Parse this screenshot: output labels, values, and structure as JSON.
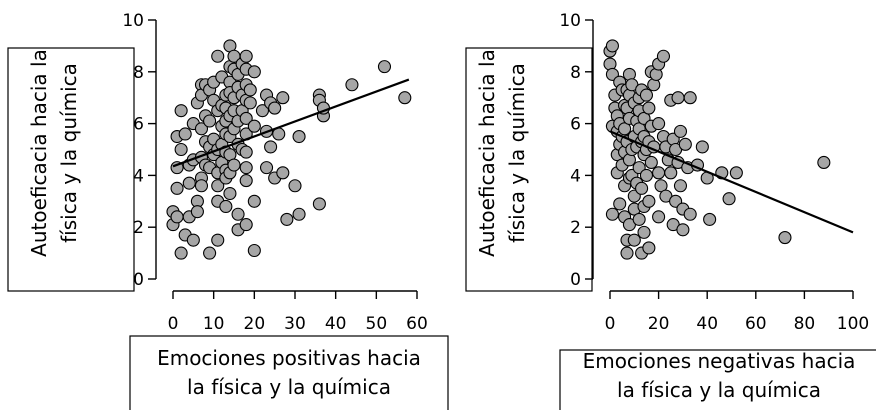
{
  "chart_data": [
    {
      "type": "scatter",
      "xlabel_lines": [
        "Emociones positivas hacia",
        "la física y la química"
      ],
      "ylabel_lines": [
        "Autoeficacia hacia la",
        "física y la química"
      ],
      "xlim": [
        0,
        60
      ],
      "ylim": [
        0,
        10
      ],
      "xticks": [
        "0",
        "10",
        "20",
        "30",
        "40",
        "50",
        "60"
      ],
      "yticks": [
        "0",
        "2",
        "4",
        "6",
        "8",
        "10"
      ],
      "fit_line": [
        [
          0,
          4.35
        ],
        [
          58,
          7.7
        ]
      ],
      "points": [
        [
          0,
          2.6
        ],
        [
          0,
          2.1
        ],
        [
          1,
          5.5
        ],
        [
          1,
          4.3
        ],
        [
          1,
          3.5
        ],
        [
          1,
          2.4
        ],
        [
          2,
          1.0
        ],
        [
          2,
          6.5
        ],
        [
          2,
          5.0
        ],
        [
          3,
          5.6
        ],
        [
          3,
          1.7
        ],
        [
          4,
          2.4
        ],
        [
          4,
          4.4
        ],
        [
          4,
          3.7
        ],
        [
          5,
          4.6
        ],
        [
          5,
          1.5
        ],
        [
          5,
          6.0
        ],
        [
          6,
          6.8
        ],
        [
          6,
          3.0
        ],
        [
          6,
          2.6
        ],
        [
          7,
          7.5
        ],
        [
          7,
          7.1
        ],
        [
          7,
          5.8
        ],
        [
          7,
          4.7
        ],
        [
          7,
          3.9
        ],
        [
          7,
          3.6
        ],
        [
          8,
          7.5
        ],
        [
          8,
          6.3
        ],
        [
          8,
          5.3
        ],
        [
          8,
          4.4
        ],
        [
          9,
          7.3
        ],
        [
          9,
          6.1
        ],
        [
          9,
          5.1
        ],
        [
          9,
          4.3
        ],
        [
          9,
          1.0
        ],
        [
          10,
          7.6
        ],
        [
          10,
          6.9
        ],
        [
          10,
          5.4
        ],
        [
          10,
          4.8
        ],
        [
          11,
          8.6
        ],
        [
          11,
          6.5
        ],
        [
          11,
          5.0
        ],
        [
          11,
          4.1
        ],
        [
          11,
          3.6
        ],
        [
          11,
          3.0
        ],
        [
          11,
          1.5
        ],
        [
          12,
          7.8
        ],
        [
          12,
          6.7
        ],
        [
          12,
          5.9
        ],
        [
          12,
          5.2
        ],
        [
          12,
          4.5
        ],
        [
          13,
          7.1
        ],
        [
          13,
          6.6
        ],
        [
          13,
          6.1
        ],
        [
          13,
          5.6
        ],
        [
          13,
          4.9
        ],
        [
          13,
          4.2
        ],
        [
          13,
          3.9
        ],
        [
          13,
          2.8
        ],
        [
          14,
          9.0
        ],
        [
          14,
          8.2
        ],
        [
          14,
          7.6
        ],
        [
          14,
          7.2
        ],
        [
          14,
          6.3
        ],
        [
          14,
          5.5
        ],
        [
          14,
          4.8
        ],
        [
          14,
          4.1
        ],
        [
          14,
          3.3
        ],
        [
          15,
          8.6
        ],
        [
          15,
          8.1
        ],
        [
          15,
          7.0
        ],
        [
          15,
          6.5
        ],
        [
          15,
          5.8
        ],
        [
          15,
          4.4
        ],
        [
          16,
          7.9
        ],
        [
          16,
          7.4
        ],
        [
          16,
          6.1
        ],
        [
          16,
          5.2
        ],
        [
          16,
          2.5
        ],
        [
          16,
          1.9
        ],
        [
          17,
          8.3
        ],
        [
          17,
          7.1
        ],
        [
          17,
          6.5
        ],
        [
          17,
          5.0
        ],
        [
          18,
          8.6
        ],
        [
          18,
          8.1
        ],
        [
          18,
          7.5
        ],
        [
          18,
          6.9
        ],
        [
          18,
          6.2
        ],
        [
          18,
          5.6
        ],
        [
          18,
          4.9
        ],
        [
          18,
          4.3
        ],
        [
          18,
          3.8
        ],
        [
          18,
          2.1
        ],
        [
          19,
          7.3
        ],
        [
          19,
          6.8
        ],
        [
          20,
          8.0
        ],
        [
          20,
          5.9
        ],
        [
          20,
          3.0
        ],
        [
          20,
          1.1
        ],
        [
          22,
          6.5
        ],
        [
          23,
          7.1
        ],
        [
          23,
          5.7
        ],
        [
          23,
          4.3
        ],
        [
          24,
          6.8
        ],
        [
          24,
          5.1
        ],
        [
          25,
          6.6
        ],
        [
          25,
          3.9
        ],
        [
          26,
          5.6
        ],
        [
          27,
          7.0
        ],
        [
          27,
          4.1
        ],
        [
          28,
          2.3
        ],
        [
          30,
          3.6
        ],
        [
          31,
          5.5
        ],
        [
          31,
          2.5
        ],
        [
          36,
          7.1
        ],
        [
          36,
          6.9
        ],
        [
          36,
          2.9
        ],
        [
          37,
          6.3
        ],
        [
          37,
          6.6
        ],
        [
          44,
          7.5
        ],
        [
          52,
          8.2
        ],
        [
          57,
          7.0
        ]
      ]
    },
    {
      "type": "scatter",
      "xlabel_lines": [
        "Emociones negativas hacia",
        "la física y la química"
      ],
      "ylabel_lines": [
        "Autoeficacia hacia la",
        "física y la química"
      ],
      "xlim": [
        0,
        100
      ],
      "ylim": [
        0,
        10
      ],
      "xticks": [
        "0",
        "20",
        "40",
        "60",
        "80",
        "100"
      ],
      "yticks": [
        "0",
        "2",
        "4",
        "6",
        "8",
        "10"
      ],
      "fit_line": [
        [
          0,
          5.7
        ],
        [
          100,
          1.8
        ]
      ],
      "points": [
        [
          0,
          8.8
        ],
        [
          0,
          8.3
        ],
        [
          1,
          9.0
        ],
        [
          1,
          7.9
        ],
        [
          1,
          5.9
        ],
        [
          1,
          2.5
        ],
        [
          2,
          7.1
        ],
        [
          2,
          6.6
        ],
        [
          3,
          6.3
        ],
        [
          3,
          5.7
        ],
        [
          3,
          4.8
        ],
        [
          3,
          4.1
        ],
        [
          4,
          7.6
        ],
        [
          4,
          6.0
        ],
        [
          4,
          5.2
        ],
        [
          4,
          2.9
        ],
        [
          5,
          7.3
        ],
        [
          5,
          5.5
        ],
        [
          5,
          4.4
        ],
        [
          6,
          6.7
        ],
        [
          6,
          5.8
        ],
        [
          6,
          4.9
        ],
        [
          6,
          3.6
        ],
        [
          6,
          2.4
        ],
        [
          7,
          7.3
        ],
        [
          7,
          6.6
        ],
        [
          7,
          5.3
        ],
        [
          7,
          1.5
        ],
        [
          7,
          1.0
        ],
        [
          8,
          7.9
        ],
        [
          8,
          7.1
        ],
        [
          8,
          6.2
        ],
        [
          8,
          4.6
        ],
        [
          8,
          3.9
        ],
        [
          8,
          2.1
        ],
        [
          9,
          7.5
        ],
        [
          9,
          5.0
        ],
        [
          9,
          4.0
        ],
        [
          10,
          6.8
        ],
        [
          10,
          5.5
        ],
        [
          10,
          3.2
        ],
        [
          10,
          2.7
        ],
        [
          10,
          1.5
        ],
        [
          11,
          6.1
        ],
        [
          11,
          5.1
        ],
        [
          11,
          3.7
        ],
        [
          12,
          7.0
        ],
        [
          12,
          6.5
        ],
        [
          12,
          5.8
        ],
        [
          12,
          4.3
        ],
        [
          12,
          2.3
        ],
        [
          13,
          7.3
        ],
        [
          13,
          5.3
        ],
        [
          13,
          3.5
        ],
        [
          13,
          1.0
        ],
        [
          14,
          6.2
        ],
        [
          14,
          5.5
        ],
        [
          14,
          4.8
        ],
        [
          14,
          2.8
        ],
        [
          14,
          1.8
        ],
        [
          15,
          7.1
        ],
        [
          15,
          5.0
        ],
        [
          15,
          4.0
        ],
        [
          16,
          6.6
        ],
        [
          16,
          5.3
        ],
        [
          16,
          3.0
        ],
        [
          16,
          1.2
        ],
        [
          17,
          8.0
        ],
        [
          17,
          5.9
        ],
        [
          17,
          4.5
        ],
        [
          18,
          7.5
        ],
        [
          18,
          5.1
        ],
        [
          19,
          7.9
        ],
        [
          20,
          8.3
        ],
        [
          20,
          6.0
        ],
        [
          20,
          4.1
        ],
        [
          20,
          2.4
        ],
        [
          21,
          3.6
        ],
        [
          22,
          8.6
        ],
        [
          22,
          5.5
        ],
        [
          23,
          5.1
        ],
        [
          23,
          3.2
        ],
        [
          24,
          4.6
        ],
        [
          25,
          6.9
        ],
        [
          25,
          4.1
        ],
        [
          26,
          5.4
        ],
        [
          26,
          2.1
        ],
        [
          27,
          5.0
        ],
        [
          27,
          3.0
        ],
        [
          28,
          7.0
        ],
        [
          28,
          4.5
        ],
        [
          29,
          5.7
        ],
        [
          29,
          3.6
        ],
        [
          30,
          2.7
        ],
        [
          30,
          1.9
        ],
        [
          31,
          5.2
        ],
        [
          32,
          4.3
        ],
        [
          33,
          7.0
        ],
        [
          33,
          2.5
        ],
        [
          36,
          4.4
        ],
        [
          38,
          5.1
        ],
        [
          40,
          3.9
        ],
        [
          41,
          2.3
        ],
        [
          46,
          4.1
        ],
        [
          49,
          3.1
        ],
        [
          52,
          4.1
        ],
        [
          72,
          1.6
        ],
        [
          88,
          4.5
        ]
      ]
    }
  ]
}
